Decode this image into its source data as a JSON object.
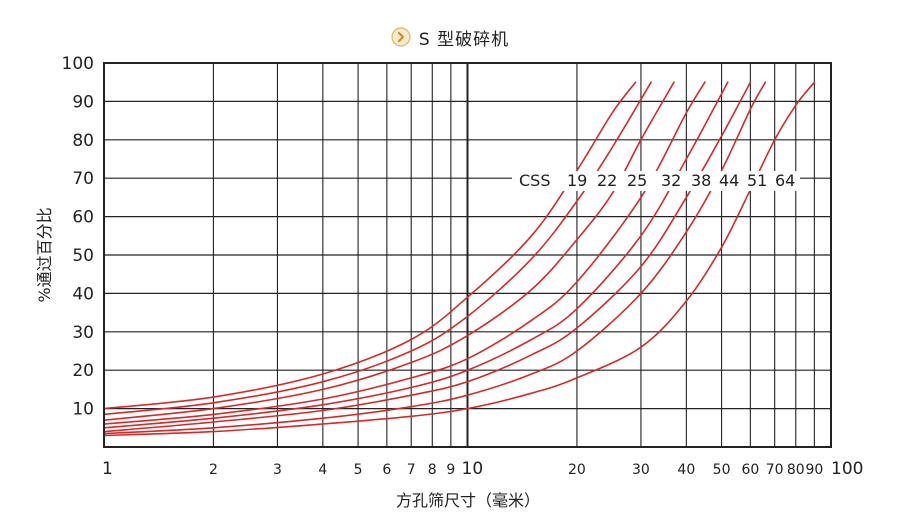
{
  "chart_data": {
    "type": "line",
    "title": "S 型破碎机",
    "xlabel": "方孔筛尺寸（毫米）",
    "ylabel": "%通过百分比",
    "x_scale": "log",
    "xlim": [
      1,
      100
    ],
    "ylim": [
      0,
      100
    ],
    "grid": true,
    "y_ticks": [
      10,
      20,
      30,
      40,
      50,
      60,
      70,
      80,
      90,
      100
    ],
    "x_ticks": [
      {
        "value": 1,
        "label": "1"
      },
      {
        "value": 2,
        "label": "2"
      },
      {
        "value": 3,
        "label": "3"
      },
      {
        "value": 4,
        "label": "4"
      },
      {
        "value": 5,
        "label": "5"
      },
      {
        "value": 6,
        "label": "6"
      },
      {
        "value": 7,
        "label": "7"
      },
      {
        "value": 8,
        "label": "8"
      },
      {
        "value": 9,
        "label": "9"
      },
      {
        "value": 10,
        "label": "10"
      },
      {
        "value": 20,
        "label": "20"
      },
      {
        "value": 30,
        "label": "30"
      },
      {
        "value": 40,
        "label": "40"
      },
      {
        "value": 50,
        "label": "50"
      },
      {
        "value": 60,
        "label": "60"
      },
      {
        "value": 70,
        "label": "70"
      },
      {
        "value": 80,
        "label": "80"
      },
      {
        "value": 90,
        "label": "90"
      },
      {
        "value": 100,
        "label": "100"
      }
    ],
    "legend_prefix": "CSS",
    "line_color": "#d42a2a",
    "series": [
      {
        "name": "19",
        "points": [
          [
            1,
            10
          ],
          [
            2,
            13
          ],
          [
            4,
            19
          ],
          [
            7,
            28
          ],
          [
            10,
            39
          ],
          [
            15,
            55
          ],
          [
            20,
            72
          ],
          [
            25,
            87
          ],
          [
            29,
            95
          ]
        ]
      },
      {
        "name": "22",
        "points": [
          [
            1,
            8.5
          ],
          [
            2,
            11.5
          ],
          [
            4,
            17
          ],
          [
            7,
            25
          ],
          [
            10,
            34
          ],
          [
            15,
            49
          ],
          [
            20,
            64
          ],
          [
            25,
            78
          ],
          [
            32,
            95
          ]
        ]
      },
      {
        "name": "25",
        "points": [
          [
            1,
            7
          ],
          [
            2,
            10
          ],
          [
            4,
            15
          ],
          [
            7,
            22
          ],
          [
            10,
            29
          ],
          [
            15,
            41
          ],
          [
            20,
            54
          ],
          [
            25,
            66
          ],
          [
            30,
            80
          ],
          [
            37,
            95
          ]
        ]
      },
      {
        "name": "32",
        "points": [
          [
            1,
            6
          ],
          [
            2,
            8.5
          ],
          [
            4,
            12.5
          ],
          [
            7,
            18
          ],
          [
            10,
            23
          ],
          [
            15,
            33
          ],
          [
            20,
            43
          ],
          [
            30,
            65
          ],
          [
            40,
            87
          ],
          [
            45,
            95
          ]
        ]
      },
      {
        "name": "38",
        "points": [
          [
            1,
            5
          ],
          [
            2,
            7.5
          ],
          [
            4,
            11
          ],
          [
            7,
            15.5
          ],
          [
            10,
            20
          ],
          [
            15,
            28
          ],
          [
            20,
            36
          ],
          [
            30,
            55
          ],
          [
            40,
            75
          ],
          [
            50,
            92
          ],
          [
            52,
            95
          ]
        ]
      },
      {
        "name": "44",
        "points": [
          [
            1,
            4
          ],
          [
            2,
            6.5
          ],
          [
            4,
            9.5
          ],
          [
            7,
            13.5
          ],
          [
            10,
            17
          ],
          [
            15,
            24
          ],
          [
            20,
            31
          ],
          [
            30,
            47
          ],
          [
            40,
            65
          ],
          [
            50,
            81
          ],
          [
            60,
            95
          ]
        ]
      },
      {
        "name": "51",
        "points": [
          [
            1,
            3.5
          ],
          [
            2,
            5
          ],
          [
            4,
            7.5
          ],
          [
            7,
            10.5
          ],
          [
            10,
            13.5
          ],
          [
            15,
            19
          ],
          [
            20,
            25
          ],
          [
            30,
            40
          ],
          [
            40,
            56
          ],
          [
            50,
            72
          ],
          [
            60,
            88
          ],
          [
            66,
            95
          ]
        ]
      },
      {
        "name": "64",
        "points": [
          [
            1,
            3
          ],
          [
            2,
            4
          ],
          [
            4,
            6
          ],
          [
            7,
            8
          ],
          [
            10,
            10
          ],
          [
            15,
            14
          ],
          [
            20,
            18
          ],
          [
            30,
            26
          ],
          [
            40,
            38
          ],
          [
            50,
            52
          ],
          [
            60,
            67
          ],
          [
            70,
            80
          ],
          [
            80,
            89
          ],
          [
            90,
            95
          ]
        ]
      }
    ]
  }
}
